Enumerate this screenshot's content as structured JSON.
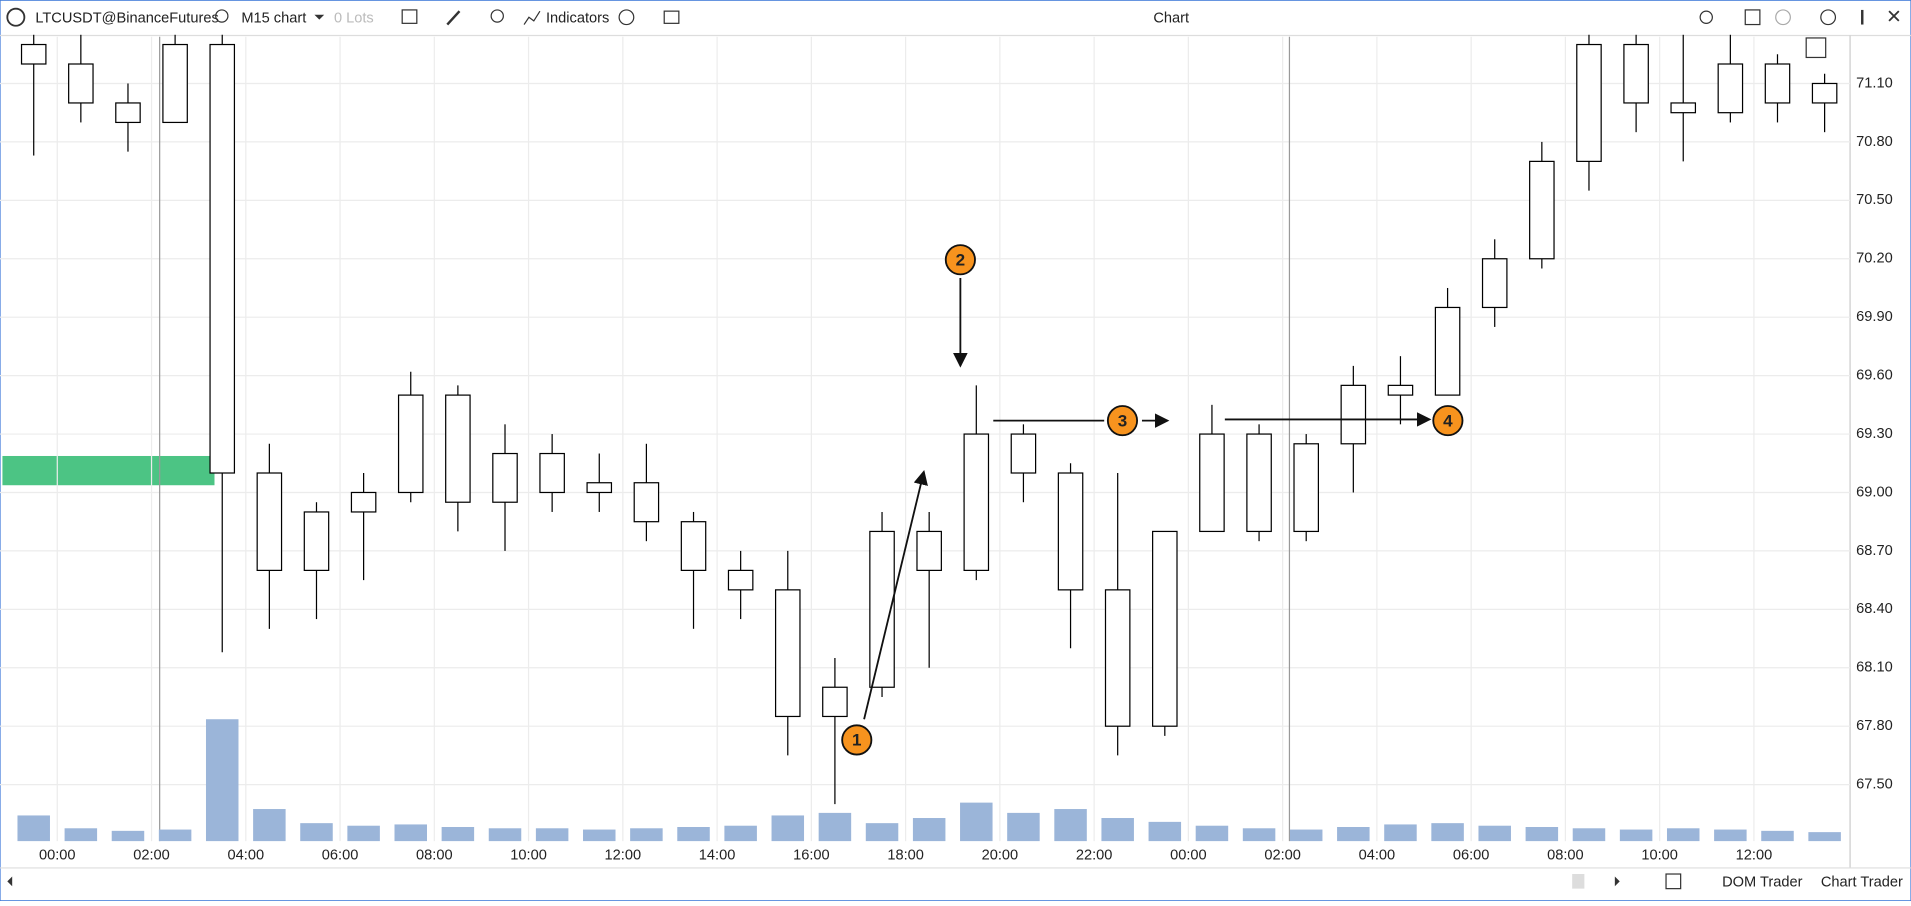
{
  "toolbar": {
    "symbol": "LTCUSDT@BinanceFutures",
    "timeframe": "M15 chart",
    "lots": "0 Lots",
    "indicators": "Indicators",
    "window_title": "Chart"
  },
  "chart_data": {
    "type": "candlestick",
    "categories": [
      null,
      "00:00",
      null,
      "02:00",
      null,
      "04:00",
      null,
      "06:00",
      null,
      "08:00",
      null,
      "10:00",
      null,
      "12:00",
      null,
      "14:00",
      null,
      "16:00",
      null,
      "18:00",
      null,
      "20:00",
      null,
      "22:00",
      null,
      "00:00",
      null,
      "02:00",
      null,
      "04:00",
      null,
      "06:00",
      null,
      "08:00",
      null,
      "10:00",
      null,
      "12:00",
      null
    ],
    "open": [
      71.3,
      71.2,
      71.0,
      70.9,
      71.3,
      69.1,
      68.6,
      68.9,
      69.0,
      69.5,
      68.95,
      69.2,
      69.0,
      69.05,
      68.85,
      68.6,
      68.5,
      67.85,
      68.0,
      68.8,
      68.6,
      69.3,
      69.1,
      68.5,
      67.8,
      68.8,
      69.3,
      68.8,
      69.25,
      69.55,
      69.5,
      69.95,
      70.2,
      70.7,
      71.3,
      71.0,
      70.95,
      71.2,
      71.0
    ],
    "high": [
      71.35,
      71.35,
      71.1,
      71.35,
      71.35,
      69.25,
      68.95,
      69.1,
      69.62,
      69.55,
      69.35,
      69.3,
      69.2,
      69.25,
      68.9,
      68.7,
      68.7,
      68.15,
      68.9,
      68.9,
      69.55,
      69.35,
      69.15,
      69.1,
      68.8,
      69.45,
      69.35,
      69.3,
      69.65,
      69.7,
      70.05,
      70.3,
      70.8,
      71.35,
      71.35,
      71.35,
      71.35,
      71.25,
      71.15
    ],
    "low": [
      70.73,
      70.9,
      70.75,
      70.9,
      68.18,
      68.3,
      68.35,
      68.55,
      68.95,
      68.8,
      68.7,
      68.9,
      68.9,
      68.75,
      68.3,
      68.35,
      67.65,
      67.4,
      67.95,
      68.1,
      68.55,
      68.95,
      68.2,
      67.65,
      67.75,
      68.8,
      68.75,
      68.75,
      69.0,
      69.35,
      69.5,
      69.85,
      70.15,
      70.55,
      70.85,
      70.7,
      70.9,
      70.9,
      70.85
    ],
    "close": [
      71.2,
      71.0,
      70.9,
      71.3,
      69.1,
      68.6,
      68.9,
      69.0,
      69.5,
      68.95,
      69.2,
      69.0,
      69.05,
      68.85,
      68.6,
      68.5,
      67.85,
      68.0,
      68.8,
      68.6,
      69.3,
      69.1,
      68.5,
      67.8,
      68.8,
      69.3,
      68.8,
      69.25,
      69.55,
      69.5,
      69.95,
      70.2,
      70.7,
      71.3,
      71.0,
      70.95,
      71.2,
      71.0,
      71.1
    ],
    "volume": [
      20,
      10,
      8,
      9,
      95,
      25,
      14,
      12,
      13,
      11,
      10,
      10,
      9,
      10,
      11,
      12,
      20,
      22,
      14,
      18,
      30,
      22,
      25,
      18,
      15,
      12,
      10,
      9,
      11,
      13,
      14,
      12,
      11,
      10,
      9,
      10,
      9,
      8,
      7
    ],
    "ylim": [
      67.21,
      71.34
    ],
    "yticks": [
      {
        "value": 67.5,
        "label": "67.50"
      },
      {
        "value": 67.8,
        "label": "67.80"
      },
      {
        "value": 68.1,
        "label": "68.10"
      },
      {
        "value": 68.4,
        "label": "68.40"
      },
      {
        "value": 68.7,
        "label": "68.70"
      },
      {
        "value": 69.0,
        "label": "69.00"
      },
      {
        "value": 69.3,
        "label": "69.30"
      },
      {
        "value": 69.6,
        "label": "69.60"
      },
      {
        "value": 69.9,
        "label": "69.90"
      },
      {
        "value": 70.2,
        "label": "70.20"
      },
      {
        "value": 70.5,
        "label": "70.50"
      },
      {
        "value": 70.8,
        "label": "70.80"
      },
      {
        "value": 71.1,
        "label": "71.10"
      }
    ],
    "grid": true,
    "up_color": "#ffffff",
    "down_color": "#ffffff",
    "outline_color": "#000000",
    "volume_color": "#9bb5d9",
    "annotations": [
      {
        "label": "1"
      },
      {
        "label": "2"
      },
      {
        "label": "3"
      },
      {
        "label": "4"
      }
    ]
  },
  "footer": {
    "dom_trader": "DOM Trader",
    "chart_trader": "Chart Trader"
  }
}
